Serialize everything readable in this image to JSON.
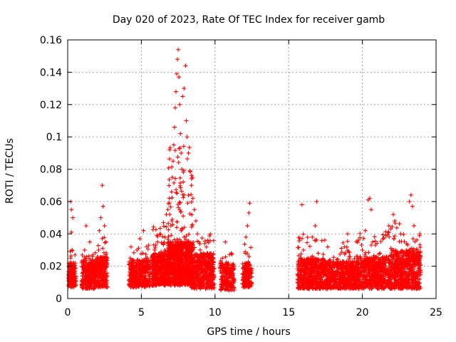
{
  "chart_data": {
    "type": "scatter",
    "title": "Day 020 of 2023, Rate Of TEC Index for receiver gamb",
    "xlabel": "GPS time / hours",
    "ylabel": "ROTI / TECUs",
    "xlim": [
      0,
      25
    ],
    "ylim": [
      0,
      0.16
    ],
    "xticks": [
      0,
      5,
      10,
      15,
      20,
      25
    ],
    "yticks": [
      0,
      0.02,
      0.04,
      0.06,
      0.08,
      0.1,
      0.12,
      0.14,
      0.16
    ],
    "xtick_labels": [
      "0",
      "5",
      "10",
      "15",
      "20",
      "25"
    ],
    "ytick_labels": [
      "0",
      "0.02",
      "0.04",
      "0.06",
      "0.08",
      "0.1",
      "0.12",
      "0.14",
      "0.16"
    ],
    "grid": true,
    "marker": "+",
    "color": "#ff0000",
    "series": [
      {
        "name": "gamb ROTI",
        "points": [
          [
            0.1,
            0.012
          ],
          [
            0.1,
            0.02
          ],
          [
            0.15,
            0.016
          ],
          [
            0.2,
            0.025
          ],
          [
            0.2,
            0.06
          ],
          [
            0.25,
            0.041
          ],
          [
            0.25,
            0.055
          ],
          [
            0.3,
            0.015
          ],
          [
            0.3,
            0.03
          ],
          [
            0.35,
            0.05
          ],
          [
            0.35,
            0.009
          ],
          [
            0.4,
            0.022
          ],
          [
            0.4,
            0.013
          ],
          [
            0.45,
            0.018
          ],
          [
            0.5,
            0.011
          ],
          [
            0.5,
            0.027
          ],
          [
            0.55,
            0.008
          ],
          [
            1.0,
            0.014
          ],
          [
            1.05,
            0.022
          ],
          [
            1.1,
            0.018
          ],
          [
            1.15,
            0.03
          ],
          [
            1.2,
            0.012
          ],
          [
            1.25,
            0.045
          ],
          [
            1.3,
            0.02
          ],
          [
            1.35,
            0.008
          ],
          [
            1.4,
            0.016
          ],
          [
            1.45,
            0.025
          ],
          [
            1.5,
            0.035
          ],
          [
            1.55,
            0.014
          ],
          [
            1.6,
            0.019
          ],
          [
            1.65,
            0.011
          ],
          [
            1.7,
            0.024
          ],
          [
            1.75,
            0.015
          ],
          [
            1.8,
            0.009
          ],
          [
            1.85,
            0.021
          ],
          [
            1.9,
            0.017
          ],
          [
            2.0,
            0.02
          ],
          [
            2.05,
            0.013
          ],
          [
            2.1,
            0.03
          ],
          [
            2.15,
            0.042
          ],
          [
            2.2,
            0.015
          ],
          [
            2.25,
            0.05
          ],
          [
            2.3,
            0.018
          ],
          [
            2.35,
            0.07
          ],
          [
            2.4,
            0.057
          ],
          [
            2.45,
            0.025
          ],
          [
            2.5,
            0.045
          ],
          [
            2.55,
            0.012
          ],
          [
            2.6,
            0.035
          ],
          [
            2.65,
            0.02
          ],
          [
            2.7,
            0.014
          ],
          [
            4.2,
            0.012
          ],
          [
            4.25,
            0.025
          ],
          [
            4.3,
            0.032
          ],
          [
            4.35,
            0.018
          ],
          [
            4.4,
            0.009
          ],
          [
            4.5,
            0.022
          ],
          [
            4.6,
            0.015
          ],
          [
            4.7,
            0.03
          ],
          [
            4.8,
            0.012
          ],
          [
            4.9,
            0.037
          ],
          [
            5.0,
            0.02
          ],
          [
            5.1,
            0.028
          ],
          [
            5.15,
            0.042
          ],
          [
            5.2,
            0.016
          ],
          [
            5.3,
            0.025
          ],
          [
            5.4,
            0.011
          ],
          [
            5.5,
            0.033
          ],
          [
            5.55,
            0.019
          ],
          [
            5.8,
            0.015
          ],
          [
            5.9,
            0.03
          ],
          [
            6.0,
            0.022
          ],
          [
            6.1,
            0.035
          ],
          [
            6.2,
            0.018
          ],
          [
            6.3,
            0.04
          ],
          [
            6.4,
            0.025
          ],
          [
            6.5,
            0.047
          ],
          [
            6.6,
            0.03
          ],
          [
            6.7,
            0.052
          ],
          [
            6.8,
            0.055
          ],
          [
            6.9,
            0.062
          ],
          [
            7.0,
            0.045
          ],
          [
            7.05,
            0.066
          ],
          [
            7.1,
            0.075
          ],
          [
            7.15,
            0.085
          ],
          [
            7.2,
            0.095
          ],
          [
            7.25,
            0.106
          ],
          [
            7.3,
            0.118
          ],
          [
            7.35,
            0.128
          ],
          [
            7.4,
            0.139
          ],
          [
            7.45,
            0.148
          ],
          [
            7.5,
            0.154
          ],
          [
            7.55,
            0.137
          ],
          [
            7.6,
            0.12
          ],
          [
            7.65,
            0.102
          ],
          [
            7.7,
            0.09
          ],
          [
            7.75,
            0.08
          ],
          [
            7.8,
            0.125
          ],
          [
            7.9,
            0.13
          ],
          [
            8.0,
            0.144
          ],
          [
            8.05,
            0.11
          ],
          [
            8.1,
            0.1
          ],
          [
            8.2,
            0.09
          ],
          [
            8.3,
            0.079
          ],
          [
            8.4,
            0.07
          ],
          [
            8.5,
            0.062
          ],
          [
            8.6,
            0.055
          ],
          [
            8.7,
            0.048
          ],
          [
            8.8,
            0.04
          ],
          [
            8.9,
            0.035
          ],
          [
            9.0,
            0.03
          ],
          [
            9.1,
            0.026
          ],
          [
            9.2,
            0.022
          ],
          [
            9.3,
            0.034
          ],
          [
            9.4,
            0.02
          ],
          [
            9.5,
            0.028
          ],
          [
            9.6,
            0.015
          ],
          [
            9.7,
            0.025
          ],
          [
            9.8,
            0.012
          ],
          [
            9.9,
            0.018
          ],
          [
            6.2,
            0.012
          ],
          [
            6.5,
            0.016
          ],
          [
            6.8,
            0.021
          ],
          [
            7.0,
            0.019
          ],
          [
            7.3,
            0.028
          ],
          [
            7.5,
            0.035
          ],
          [
            7.7,
            0.042
          ],
          [
            7.9,
            0.038
          ],
          [
            8.1,
            0.03
          ],
          [
            8.3,
            0.025
          ],
          [
            8.5,
            0.02
          ],
          [
            8.7,
            0.017
          ],
          [
            9.0,
            0.014
          ],
          [
            9.3,
            0.012
          ],
          [
            10.4,
            0.012
          ],
          [
            10.5,
            0.025
          ],
          [
            10.6,
            0.018
          ],
          [
            10.7,
            0.035
          ],
          [
            10.8,
            0.009
          ],
          [
            10.9,
            0.022
          ],
          [
            11.0,
            0.015
          ],
          [
            11.1,
            0.028
          ],
          [
            11.2,
            0.011
          ],
          [
            11.25,
            0.019
          ],
          [
            11.9,
            0.012
          ],
          [
            12.0,
            0.02
          ],
          [
            12.05,
            0.028
          ],
          [
            12.1,
            0.038
          ],
          [
            12.15,
            0.015
          ],
          [
            12.2,
            0.045
          ],
          [
            12.25,
            0.022
          ],
          [
            12.3,
            0.053
          ],
          [
            12.35,
            0.059
          ],
          [
            12.4,
            0.018
          ],
          [
            12.45,
            0.01
          ],
          [
            15.7,
            0.012
          ],
          [
            15.8,
            0.025
          ],
          [
            15.9,
            0.058
          ],
          [
            16.0,
            0.03
          ],
          [
            16.1,
            0.018
          ],
          [
            16.2,
            0.011
          ],
          [
            16.4,
            0.022
          ],
          [
            16.6,
            0.038
          ],
          [
            16.8,
            0.045
          ],
          [
            16.9,
            0.06
          ],
          [
            17.0,
            0.028
          ],
          [
            17.2,
            0.015
          ],
          [
            17.4,
            0.02
          ],
          [
            17.6,
            0.012
          ],
          [
            17.8,
            0.024
          ],
          [
            18.0,
            0.017
          ],
          [
            18.2,
            0.01
          ],
          [
            18.4,
            0.022
          ],
          [
            18.6,
            0.014
          ],
          [
            18.8,
            0.032
          ],
          [
            19.0,
            0.04
          ],
          [
            19.1,
            0.026
          ],
          [
            19.2,
            0.018
          ],
          [
            19.4,
            0.011
          ],
          [
            19.6,
            0.023
          ],
          [
            19.8,
            0.016
          ],
          [
            20.0,
            0.03
          ],
          [
            20.2,
            0.042
          ],
          [
            20.3,
            0.025
          ],
          [
            20.4,
            0.061
          ],
          [
            20.5,
            0.062
          ],
          [
            20.6,
            0.055
          ],
          [
            20.7,
            0.035
          ],
          [
            20.8,
            0.02
          ],
          [
            21.0,
            0.014
          ],
          [
            21.2,
            0.028
          ],
          [
            21.4,
            0.037
          ],
          [
            21.6,
            0.022
          ],
          [
            21.8,
            0.045
          ],
          [
            22.0,
            0.03
          ],
          [
            22.1,
            0.052
          ],
          [
            22.2,
            0.048
          ],
          [
            22.4,
            0.018
          ],
          [
            22.6,
            0.04
          ],
          [
            22.8,
            0.026
          ],
          [
            23.0,
            0.034
          ],
          [
            23.2,
            0.06
          ],
          [
            23.3,
            0.064
          ],
          [
            23.4,
            0.057
          ],
          [
            23.5,
            0.045
          ],
          [
            23.6,
            0.02
          ],
          [
            23.7,
            0.03
          ],
          [
            23.8,
            0.012
          ],
          [
            23.9,
            0.04
          ]
        ]
      }
    ],
    "clusters": [
      {
        "x0": 0.05,
        "x1": 0.55,
        "base_lo": 0.007,
        "base_hi": 0.022,
        "peak": 0.03,
        "n": 150
      },
      {
        "x0": 0.95,
        "x1": 1.95,
        "base_lo": 0.006,
        "base_hi": 0.024,
        "peak": 0.032,
        "n": 280
      },
      {
        "x0": 1.95,
        "x1": 2.7,
        "base_lo": 0.007,
        "base_hi": 0.026,
        "peak": 0.04,
        "n": 220
      },
      {
        "x0": 4.15,
        "x1": 5.6,
        "base_lo": 0.007,
        "base_hi": 0.024,
        "peak": 0.034,
        "n": 340
      },
      {
        "x0": 5.7,
        "x1": 6.8,
        "base_lo": 0.008,
        "base_hi": 0.028,
        "peak": 0.045,
        "n": 420
      },
      {
        "x0": 6.8,
        "x1": 8.5,
        "base_lo": 0.008,
        "base_hi": 0.035,
        "peak": 0.095,
        "n": 900
      },
      {
        "x0": 8.4,
        "x1": 9.95,
        "base_lo": 0.006,
        "base_hi": 0.028,
        "peak": 0.04,
        "n": 450
      },
      {
        "x0": 10.35,
        "x1": 11.3,
        "base_lo": 0.005,
        "base_hi": 0.022,
        "peak": 0.03,
        "n": 200
      },
      {
        "x0": 11.85,
        "x1": 12.5,
        "base_lo": 0.007,
        "base_hi": 0.022,
        "peak": 0.035,
        "n": 150
      },
      {
        "x0": 15.6,
        "x1": 17.5,
        "base_lo": 0.006,
        "base_hi": 0.025,
        "peak": 0.04,
        "n": 520
      },
      {
        "x0": 17.5,
        "x1": 19.7,
        "base_lo": 0.006,
        "base_hi": 0.023,
        "peak": 0.036,
        "n": 560
      },
      {
        "x0": 19.7,
        "x1": 21.9,
        "base_lo": 0.006,
        "base_hi": 0.026,
        "peak": 0.042,
        "n": 560
      },
      {
        "x0": 21.9,
        "x1": 23.95,
        "base_lo": 0.006,
        "base_hi": 0.03,
        "peak": 0.048,
        "n": 620
      }
    ]
  }
}
